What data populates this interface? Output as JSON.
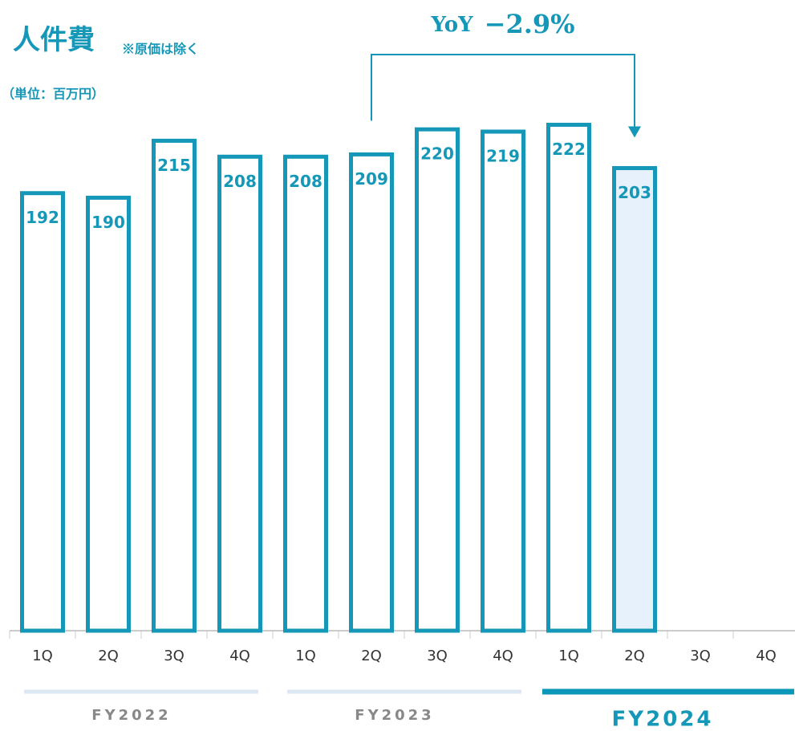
{
  "chart_data": {
    "type": "bar",
    "title": "人件費",
    "subtitle": "※原価は除く",
    "unit_label": "（単位：百万円）",
    "categories": [
      "1Q",
      "2Q",
      "3Q",
      "4Q",
      "1Q",
      "2Q",
      "3Q",
      "4Q",
      "1Q",
      "2Q",
      "3Q",
      "4Q"
    ],
    "values": [
      192,
      190,
      215,
      208,
      208,
      209,
      220,
      219,
      222,
      203,
      null,
      null
    ],
    "color": "#1597b8",
    "highlight_index": 9,
    "highlight_fill": "#e6f1fb",
    "groups": [
      {
        "label": "FY2022",
        "start": 0,
        "count": 4,
        "active": false
      },
      {
        "label": "FY2023",
        "start": 4,
        "count": 4,
        "active": false
      },
      {
        "label": "FY2024",
        "start": 8,
        "count": 4,
        "active": true
      }
    ],
    "annotation": {
      "label": "YoY",
      "change": "−2.9%",
      "from": 5,
      "to": 9
    }
  }
}
